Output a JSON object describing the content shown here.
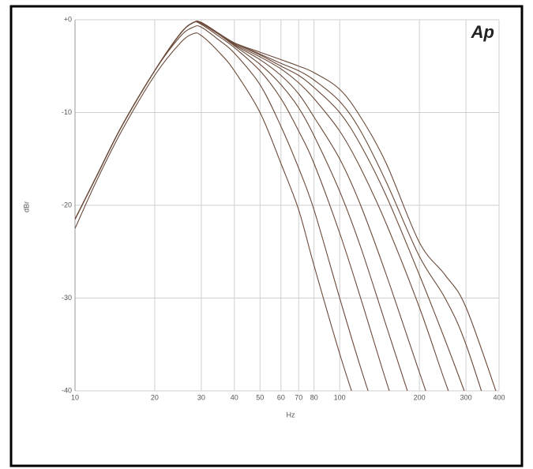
{
  "chart_data": {
    "type": "line",
    "logo": "Ap",
    "xlabel": "Hz",
    "ylabel": "dBr",
    "xscale": "log",
    "grid": true,
    "color": "#6b4a3a",
    "xlim": [
      10,
      400
    ],
    "xticks": [
      10,
      20,
      30,
      40,
      50,
      60,
      70,
      80,
      100,
      200,
      300,
      400
    ],
    "ylim": [
      -40,
      0
    ],
    "yticks": [
      {
        "value": 0,
        "label": "+0"
      },
      -10,
      -20,
      -30,
      -40
    ],
    "x": [
      10,
      12,
      15,
      20,
      25,
      28,
      30,
      35,
      40,
      50,
      60,
      70,
      80,
      100,
      120,
      150,
      200,
      250,
      300,
      400
    ],
    "series": [
      {
        "values": [
          -22.5,
          -17.5,
          -12,
          -6,
          -2.5,
          -1.5,
          -1.7,
          -3.5,
          -5.5,
          -10,
          -15.5,
          -20.5,
          -26.5,
          -36,
          -43,
          null,
          null,
          null,
          null,
          null
        ]
      },
      {
        "values": [
          -21.5,
          -17,
          -11.5,
          -5.5,
          -1.8,
          -0.8,
          -0.8,
          -2.2,
          -3.6,
          -7,
          -11.5,
          -16,
          -20.5,
          -30,
          -37.5,
          -46,
          null,
          null,
          null,
          null
        ]
      },
      {
        "values": [
          -21.5,
          -17,
          -11.5,
          -5.5,
          -1.5,
          -0.3,
          -0.5,
          -1.8,
          -3,
          -5.5,
          -8.5,
          -12,
          -15.5,
          -23,
          -30,
          -39,
          -50,
          null,
          null,
          null
        ]
      },
      {
        "values": [
          -21.5,
          -17,
          -11.5,
          -5.5,
          -1.5,
          -0.3,
          -0.4,
          -1.6,
          -2.8,
          -4.8,
          -7,
          -9.5,
          -12.5,
          -18.5,
          -24.5,
          -33,
          -44,
          null,
          null,
          null
        ]
      },
      {
        "values": [
          -21.5,
          -17,
          -11.5,
          -5.5,
          -1.5,
          -0.3,
          -0.3,
          -1.5,
          -2.7,
          -4.3,
          -6,
          -8,
          -10.5,
          -15,
          -20,
          -27.5,
          -38,
          -46,
          null,
          null
        ]
      },
      {
        "values": [
          -21.5,
          -17,
          -11.5,
          -5.5,
          -1.5,
          -0.3,
          -0.3,
          -1.5,
          -2.6,
          -4,
          -5.3,
          -6.8,
          -8.5,
          -12,
          -16,
          -22,
          -31,
          -39,
          -45,
          null
        ]
      },
      {
        "values": [
          -21.5,
          -17,
          -11.5,
          -5.5,
          -1.5,
          -0.3,
          -0.3,
          -1.5,
          -2.5,
          -3.8,
          -5,
          -6,
          -7.3,
          -10,
          -13.5,
          -19,
          -27.5,
          -34.5,
          -40.5,
          null
        ]
      },
      {
        "values": [
          -21.5,
          -17,
          -11.5,
          -5.5,
          -1.5,
          -0.3,
          -0.3,
          -1.5,
          -2.5,
          -3.7,
          -4.7,
          -5.5,
          -6.5,
          -8.8,
          -12,
          -17.5,
          -25.5,
          -30,
          -35,
          -46
        ]
      },
      {
        "values": [
          -21.5,
          -17,
          -11.5,
          -5.5,
          -1.5,
          -0.3,
          -0.3,
          -1.5,
          -2.5,
          -3.5,
          -4.3,
          -5,
          -5.7,
          -7.5,
          -10.5,
          -15.5,
          -24,
          -27.5,
          -31,
          -41
        ]
      }
    ]
  }
}
